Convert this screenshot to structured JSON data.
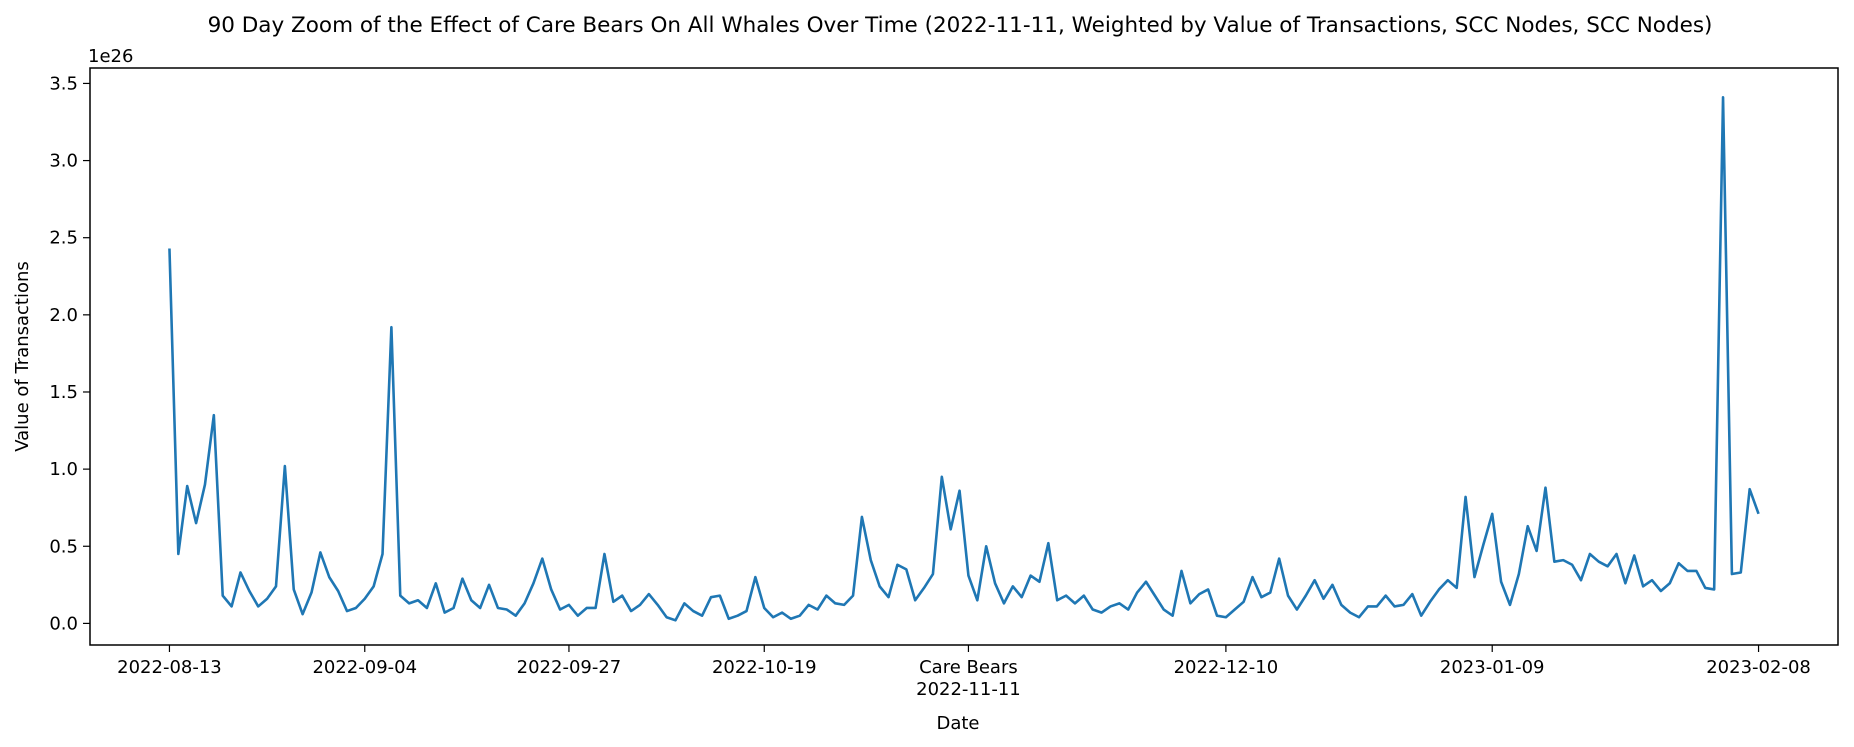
{
  "chart_data": {
    "type": "line",
    "title": "90 Day Zoom of the Effect of Care Bears On All Whales Over Time (2022-11-11, Weighted by Value of Transactions, SCC Nodes, SCC Nodes)",
    "xlabel": "Date",
    "ylabel": "Value of Transactions",
    "y_offset_text": "1e26",
    "y_scale_factor": 1e+26,
    "ylim": [
      -0.14,
      3.6
    ],
    "y_ticks": [
      0.0,
      0.5,
      1.0,
      1.5,
      2.0,
      2.5,
      3.0,
      3.5
    ],
    "y_tick_labels": [
      "0.0",
      "0.5",
      "1.0",
      "1.5",
      "2.0",
      "2.5",
      "3.0",
      "3.5"
    ],
    "x_ticks": [
      {
        "date": "2022-08-13",
        "label": "2022-08-13"
      },
      {
        "date": "2022-09-04",
        "label": "2022-09-04"
      },
      {
        "date": "2022-09-27",
        "label": "2022-09-27"
      },
      {
        "date": "2022-10-19",
        "label": "2022-10-19"
      },
      {
        "date": "2022-11-11",
        "label": "Care Bears\n2022-11-11"
      },
      {
        "date": "2022-12-10",
        "label": "2022-12-10"
      },
      {
        "date": "2023-01-09",
        "label": "2023-01-09"
      },
      {
        "date": "2023-02-08",
        "label": "2023-02-08"
      }
    ],
    "grid": false,
    "series": [
      {
        "color": "#1f77b4",
        "x": [
          "2022-08-13",
          "2022-08-14",
          "2022-08-15",
          "2022-08-16",
          "2022-08-17",
          "2022-08-18",
          "2022-08-19",
          "2022-08-20",
          "2022-08-21",
          "2022-08-22",
          "2022-08-23",
          "2022-08-24",
          "2022-08-25",
          "2022-08-26",
          "2022-08-27",
          "2022-08-28",
          "2022-08-29",
          "2022-08-30",
          "2022-08-31",
          "2022-09-01",
          "2022-09-02",
          "2022-09-03",
          "2022-09-04",
          "2022-09-05",
          "2022-09-06",
          "2022-09-07",
          "2022-09-08",
          "2022-09-09",
          "2022-09-10",
          "2022-09-11",
          "2022-09-12",
          "2022-09-13",
          "2022-09-14",
          "2022-09-15",
          "2022-09-16",
          "2022-09-17",
          "2022-09-18",
          "2022-09-19",
          "2022-09-20",
          "2022-09-21",
          "2022-09-22",
          "2022-09-23",
          "2022-09-24",
          "2022-09-25",
          "2022-09-26",
          "2022-09-27",
          "2022-09-28",
          "2022-09-29",
          "2022-09-30",
          "2022-10-01",
          "2022-10-02",
          "2022-10-03",
          "2022-10-04",
          "2022-10-05",
          "2022-10-06",
          "2022-10-07",
          "2022-10-08",
          "2022-10-09",
          "2022-10-10",
          "2022-10-11",
          "2022-10-12",
          "2022-10-13",
          "2022-10-14",
          "2022-10-15",
          "2022-10-16",
          "2022-10-17",
          "2022-10-18",
          "2022-10-19",
          "2022-10-20",
          "2022-10-21",
          "2022-10-22",
          "2022-10-23",
          "2022-10-24",
          "2022-10-25",
          "2022-10-26",
          "2022-10-27",
          "2022-10-28",
          "2022-10-29",
          "2022-10-30",
          "2022-10-31",
          "2022-11-01",
          "2022-11-02",
          "2022-11-03",
          "2022-11-04",
          "2022-11-05",
          "2022-11-06",
          "2022-11-07",
          "2022-11-08",
          "2022-11-09",
          "2022-11-10",
          "2022-11-11",
          "2022-11-12",
          "2022-11-13",
          "2022-11-14",
          "2022-11-15",
          "2022-11-16",
          "2022-11-17",
          "2022-11-18",
          "2022-11-19",
          "2022-11-20",
          "2022-11-21",
          "2022-11-22",
          "2022-11-23",
          "2022-11-24",
          "2022-11-25",
          "2022-11-26",
          "2022-11-27",
          "2022-11-28",
          "2022-11-29",
          "2022-11-30",
          "2022-12-01",
          "2022-12-02",
          "2022-12-03",
          "2022-12-04",
          "2022-12-05",
          "2022-12-06",
          "2022-12-07",
          "2022-12-08",
          "2022-12-09",
          "2022-12-10",
          "2022-12-11",
          "2022-12-12",
          "2022-12-13",
          "2022-12-14",
          "2022-12-15",
          "2022-12-16",
          "2022-12-17",
          "2022-12-18",
          "2022-12-19",
          "2022-12-20",
          "2022-12-21",
          "2022-12-22",
          "2022-12-23",
          "2022-12-24",
          "2022-12-25",
          "2022-12-26",
          "2022-12-27",
          "2022-12-28",
          "2022-12-29",
          "2022-12-30",
          "2022-12-31",
          "2023-01-01",
          "2023-01-02",
          "2023-01-03",
          "2023-01-04",
          "2023-01-05",
          "2023-01-06",
          "2023-01-07",
          "2023-01-08",
          "2023-01-09",
          "2023-01-10",
          "2023-01-11",
          "2023-01-12",
          "2023-01-13",
          "2023-01-14",
          "2023-01-15",
          "2023-01-16",
          "2023-01-17",
          "2023-01-18",
          "2023-01-19",
          "2023-01-20",
          "2023-01-21",
          "2023-01-22",
          "2023-01-23",
          "2023-01-24",
          "2023-01-25",
          "2023-01-26",
          "2023-01-27",
          "2023-01-28",
          "2023-01-29",
          "2023-01-30",
          "2023-01-31",
          "2023-02-01",
          "2023-02-02",
          "2023-02-03",
          "2023-02-04",
          "2023-02-05",
          "2023-02-06",
          "2023-02-07",
          "2023-02-08"
        ],
        "y": [
          2.43,
          0.45,
          0.89,
          0.65,
          0.9,
          1.35,
          0.18,
          0.11,
          0.33,
          0.21,
          0.11,
          0.16,
          0.24,
          1.02,
          0.22,
          0.06,
          0.2,
          0.46,
          0.3,
          0.21,
          0.08,
          0.1,
          0.16,
          0.24,
          0.45,
          1.92,
          0.18,
          0.13,
          0.15,
          0.1,
          0.26,
          0.07,
          0.1,
          0.29,
          0.15,
          0.1,
          0.25,
          0.1,
          0.09,
          0.05,
          0.13,
          0.26,
          0.42,
          0.22,
          0.09,
          0.12,
          0.05,
          0.1,
          0.1,
          0.45,
          0.14,
          0.18,
          0.08,
          0.12,
          0.19,
          0.12,
          0.04,
          0.02,
          0.13,
          0.08,
          0.05,
          0.17,
          0.18,
          0.03,
          0.05,
          0.08,
          0.3,
          0.1,
          0.04,
          0.07,
          0.03,
          0.05,
          0.12,
          0.09,
          0.18,
          0.13,
          0.12,
          0.18,
          0.69,
          0.41,
          0.24,
          0.17,
          0.38,
          0.35,
          0.15,
          0.23,
          0.32,
          0.95,
          0.61,
          0.86,
          0.31,
          0.15,
          0.5,
          0.26,
          0.13,
          0.24,
          0.17,
          0.31,
          0.27,
          0.52,
          0.15,
          0.18,
          0.13,
          0.18,
          0.09,
          0.07,
          0.11,
          0.13,
          0.09,
          0.2,
          0.27,
          0.18,
          0.09,
          0.05,
          0.34,
          0.13,
          0.19,
          0.22,
          0.05,
          0.04,
          0.09,
          0.14,
          0.3,
          0.17,
          0.2,
          0.42,
          0.18,
          0.09,
          0.18,
          0.28,
          0.16,
          0.25,
          0.12,
          0.07,
          0.04,
          0.11,
          0.11,
          0.18,
          0.11,
          0.12,
          0.19,
          0.05,
          0.14,
          0.22,
          0.28,
          0.23,
          0.82,
          0.3,
          0.51,
          0.71,
          0.27,
          0.12,
          0.32,
          0.63,
          0.47,
          0.88,
          0.4,
          0.41,
          0.38,
          0.28,
          0.45,
          0.4,
          0.37,
          0.45,
          0.26,
          0.44,
          0.24,
          0.28,
          0.21,
          0.26,
          0.39,
          0.34,
          0.34,
          0.23,
          0.22,
          3.41,
          0.32,
          0.33,
          0.87,
          0.71
        ]
      }
    ]
  }
}
